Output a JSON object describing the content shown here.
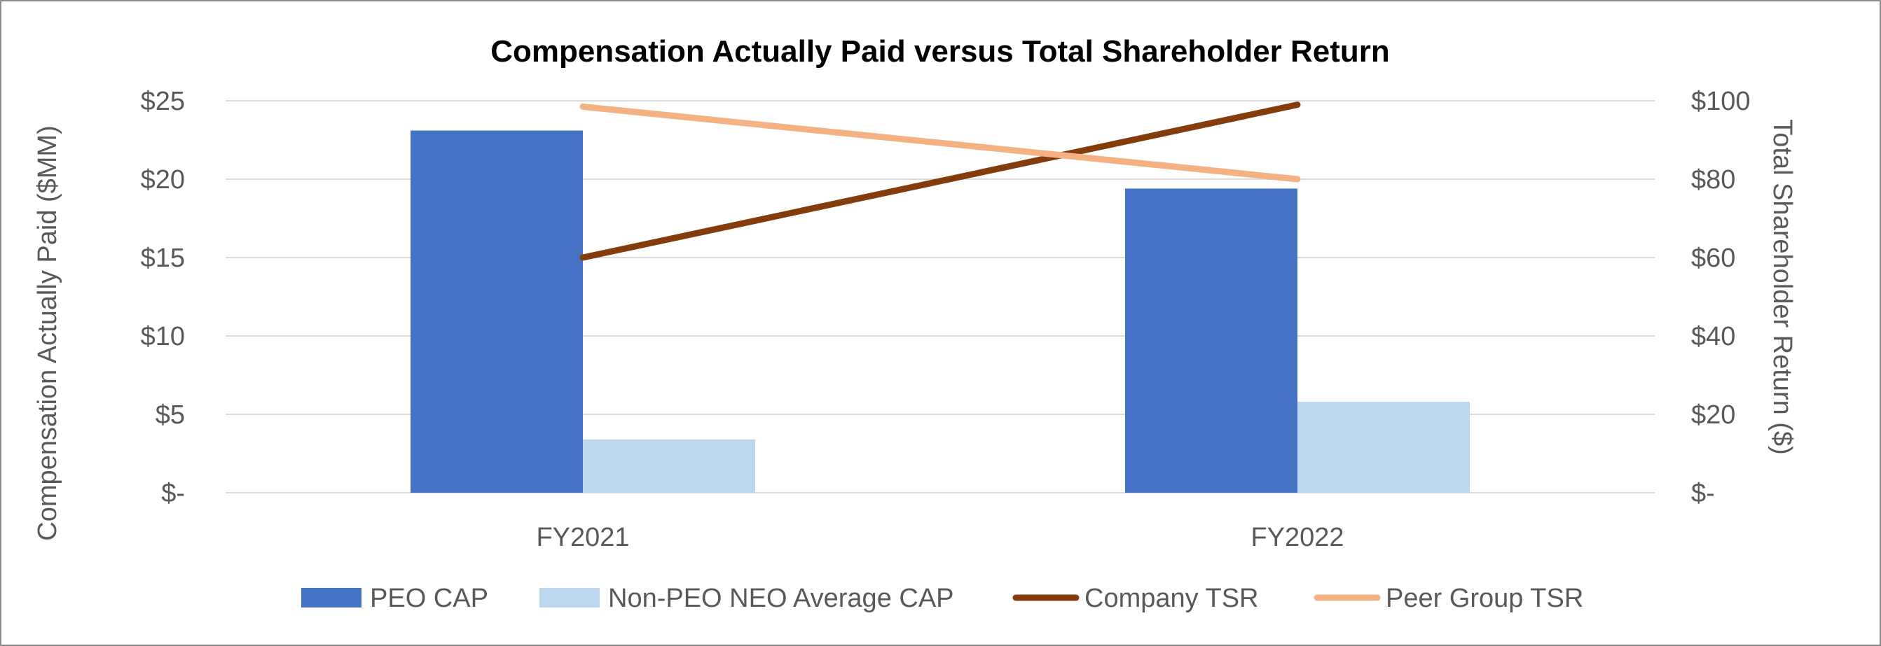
{
  "chart_data": {
    "type": "bar",
    "title": "Compensation Actually Paid versus Total Shareholder Return",
    "categories": [
      "FY2021",
      "FY2022"
    ],
    "y_left": {
      "label": "Compensation Actually Paid ($MM)",
      "range": [
        0,
        25
      ],
      "ticks": [
        0,
        5,
        10,
        15,
        20,
        25
      ],
      "tick_labels": [
        "$-",
        "$5",
        "$10",
        "$15",
        "$20",
        "$25"
      ]
    },
    "y_right": {
      "label": "Total Shareholder Return ($)",
      "range": [
        0,
        100
      ],
      "ticks": [
        0,
        20,
        40,
        60,
        80,
        100
      ],
      "tick_labels": [
        "$-",
        "$20",
        "$40",
        "$60",
        "$80",
        "$100"
      ]
    },
    "grid": true,
    "legend_position": "bottom",
    "series": [
      {
        "name": "PEO CAP",
        "kind": "bar",
        "axis": "left",
        "color": "#4472c4",
        "values": [
          23.1,
          19.4
        ]
      },
      {
        "name": "Non-PEO NEO Average CAP",
        "kind": "bar",
        "axis": "left",
        "color": "#bdd7ee",
        "values": [
          3.4,
          5.8
        ]
      },
      {
        "name": "Company TSR",
        "kind": "line",
        "axis": "right",
        "color": "#843c0c",
        "values": [
          60,
          99
        ]
      },
      {
        "name": "Peer Group TSR",
        "kind": "line",
        "axis": "right",
        "color": "#f4b183",
        "values": [
          98.5,
          80
        ]
      }
    ]
  }
}
